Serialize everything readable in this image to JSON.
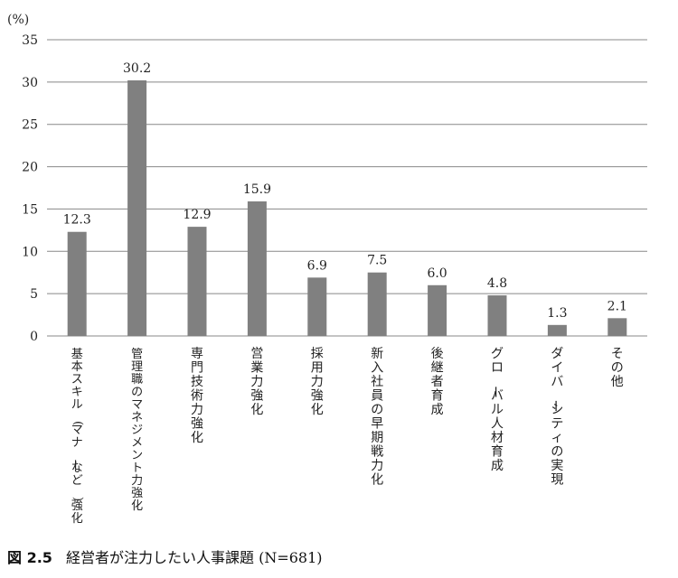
{
  "chart_data": {
    "type": "bar",
    "unit_label": "(%)",
    "categories": [
      "基本スキル(マナーなど)強化",
      "管理職のマネジメント力強化",
      "専門技術力強化",
      "営業力強化",
      "採用力強化",
      "新入社員の早期戦力化",
      "後継者育成",
      "グローバル人材育成",
      "ダイバーシティの実現",
      "その他"
    ],
    "values": [
      12.3,
      30.2,
      12.9,
      15.9,
      6.9,
      7.5,
      6.0,
      4.8,
      1.3,
      2.1
    ],
    "data_labels": [
      "12.3",
      "30.2",
      "12.9",
      "15.9",
      "6.9",
      "7.5",
      "6.0",
      "4.8",
      "1.3",
      "2.1"
    ],
    "ylim": [
      0,
      35
    ],
    "yticks": [
      0,
      5,
      10,
      15,
      20,
      25,
      30,
      35
    ],
    "grid": true,
    "bar_color": "#808080",
    "grid_color": "#888888"
  },
  "caption": {
    "figure_number": "図 2.5",
    "text": "経営者が注力したい人事課題 (N=681)"
  }
}
